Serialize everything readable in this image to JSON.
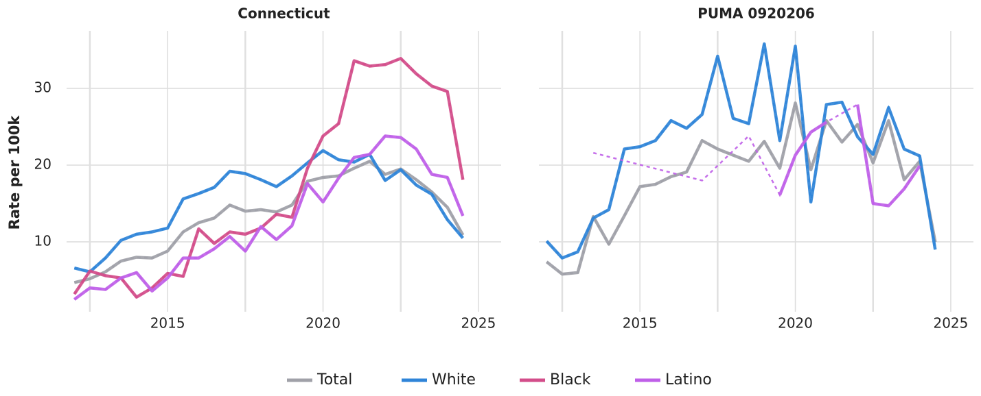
{
  "chart_data": [
    {
      "type": "line",
      "title": "Connecticut",
      "ylabel": "Rate per 100k",
      "x": [
        2012,
        2012.5,
        2013,
        2013.5,
        2014,
        2014.5,
        2015,
        2015.5,
        2016,
        2016.5,
        2017,
        2017.5,
        2018,
        2018.5,
        2019,
        2019.5,
        2020,
        2020.5,
        2021,
        2021.5,
        2022,
        2022.5,
        2023,
        2023.5,
        2024,
        2024.5
      ],
      "xlim": [
        2011.75,
        2025.73
      ],
      "xticks": [
        2015,
        2020,
        2025
      ],
      "xminor": [
        2012.5,
        2017.5,
        2022.5
      ],
      "ylim": [
        0.9,
        37.5
      ],
      "yticks": [
        10,
        20,
        30
      ],
      "grid": true,
      "legend": "bottom",
      "gap_line": "dashed",
      "series": [
        {
          "name": "Total",
          "color": "#a0a1a8",
          "values": [
            4.7,
            5.2,
            6.1,
            7.5,
            8.0,
            7.9,
            8.8,
            11.3,
            12.5,
            13.1,
            14.8,
            14.0,
            14.2,
            13.9,
            14.8,
            17.9,
            18.4,
            18.6,
            19.6,
            20.5,
            18.8,
            19.5,
            18.1,
            16.5,
            14.5,
            10.9
          ]
        },
        {
          "name": "White",
          "color": "#2f84d8",
          "values": [
            6.6,
            6.1,
            7.9,
            10.2,
            11.0,
            11.3,
            11.8,
            15.6,
            16.3,
            17.1,
            19.2,
            18.9,
            18.1,
            17.2,
            18.6,
            20.3,
            21.9,
            20.7,
            20.4,
            21.4,
            18.0,
            19.4,
            17.4,
            16.2,
            12.9,
            10.5
          ]
        },
        {
          "name": "Black",
          "color": "#d34d8a",
          "values": [
            3.2,
            6.2,
            5.6,
            5.3,
            2.8,
            4.0,
            5.9,
            5.5,
            11.7,
            9.8,
            11.3,
            11.0,
            11.8,
            13.6,
            13.2,
            19.6,
            23.8,
            25.4,
            33.6,
            32.9,
            33.1,
            33.9,
            31.9,
            30.3,
            29.6,
            18.1
          ]
        },
        {
          "name": "Latino",
          "color": "#bf5fe8",
          "values": [
            2.5,
            4.0,
            3.8,
            5.3,
            6.0,
            3.6,
            5.3,
            7.9,
            7.9,
            9.1,
            10.7,
            8.8,
            12.0,
            10.3,
            12.1,
            17.6,
            15.2,
            18.3,
            21.0,
            21.4,
            23.8,
            23.6,
            22.1,
            18.8,
            18.4,
            13.4
          ]
        }
      ]
    },
    {
      "type": "line",
      "title": "PUMA 0920206",
      "x": [
        2012,
        2012.5,
        2013,
        2013.5,
        2014,
        2014.5,
        2015,
        2015.5,
        2016,
        2016.5,
        2017,
        2017.5,
        2018,
        2018.5,
        2019,
        2019.5,
        2020,
        2020.5,
        2021,
        2021.5,
        2022,
        2022.5,
        2023,
        2023.5,
        2024,
        2024.5
      ],
      "xlim": [
        2011.75,
        2025.73
      ],
      "xticks": [
        2015,
        2020,
        2025
      ],
      "xminor": [
        2012.5,
        2017.5,
        2022.5
      ],
      "ylim": [
        0.9,
        37.5
      ],
      "yticks": [
        10,
        20,
        30
      ],
      "grid": true,
      "gap_line": "dashed",
      "series": [
        {
          "name": "Total",
          "color": "#a0a1a8",
          "values": [
            7.4,
            5.8,
            6.0,
            13.3,
            9.7,
            13.4,
            17.2,
            17.5,
            18.5,
            19.1,
            23.2,
            22.1,
            21.3,
            20.5,
            23.1,
            19.6,
            28.1,
            19.4,
            25.8,
            23.0,
            25.3,
            20.3,
            25.8,
            18.1,
            20.5,
            10.0
          ]
        },
        {
          "name": "White",
          "color": "#2f84d8",
          "values": [
            10.1,
            7.9,
            8.7,
            13.1,
            14.2,
            22.1,
            22.4,
            23.2,
            25.8,
            24.8,
            26.6,
            34.2,
            26.1,
            25.4,
            35.8,
            23.2,
            35.5,
            15.2,
            27.9,
            28.2,
            23.7,
            21.4,
            27.5,
            22.1,
            21.2,
            9.0
          ]
        },
        {
          "name": "Latino",
          "color": "#bf5fe8",
          "values": [
            null,
            null,
            null,
            21.6,
            null,
            null,
            null,
            null,
            null,
            null,
            18.0,
            null,
            null,
            23.8,
            null,
            16.1,
            21.3,
            24.3,
            25.6,
            null,
            27.9,
            15.0,
            14.7,
            16.9,
            19.9,
            null
          ]
        }
      ]
    }
  ]
}
